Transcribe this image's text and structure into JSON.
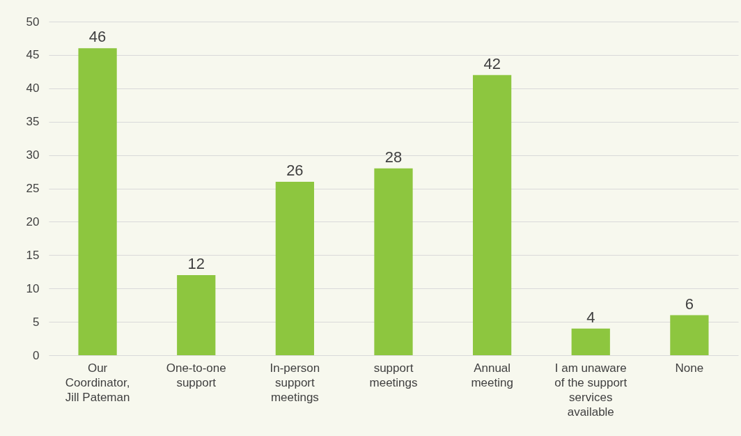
{
  "chart_data": {
    "type": "bar",
    "categories": [
      "Our Coordinator, Jill Pateman",
      "One-to-one support",
      "In-person support meetings",
      "support meetings",
      "Annual meeting",
      "I am unaware of the support services available",
      "None"
    ],
    "values": [
      46,
      12,
      26,
      28,
      42,
      4,
      6
    ],
    "color": "#8dc63f",
    "ylim": [
      0,
      50
    ],
    "yticks": [
      0,
      5,
      10,
      15,
      20,
      25,
      30,
      35,
      40,
      45,
      50
    ],
    "grid": "y",
    "data_labels": true
  }
}
